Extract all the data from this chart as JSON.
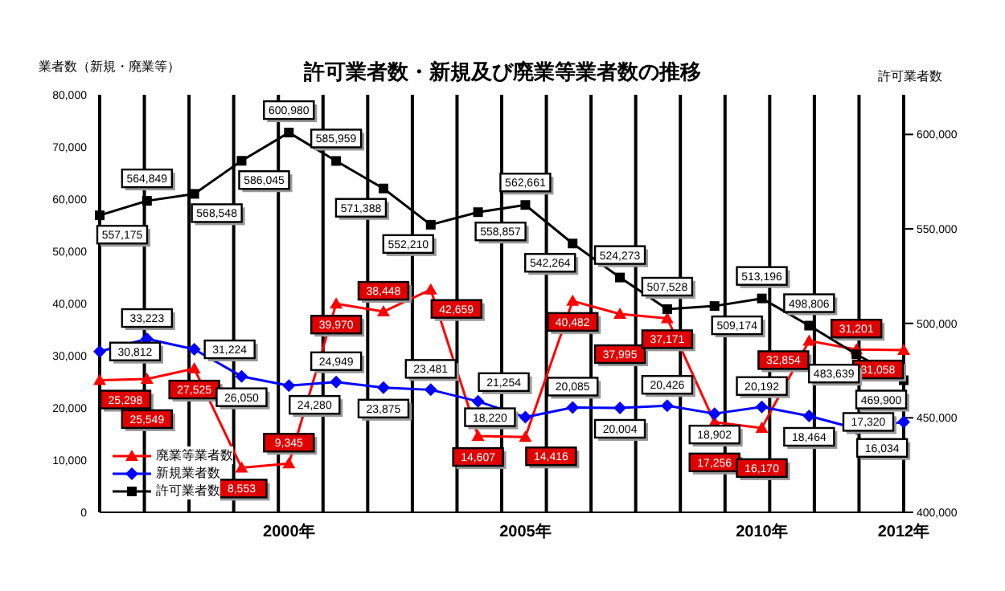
{
  "chart_data": {
    "type": "line",
    "title": "許可業者数・新規及び廃業等業者数の推移",
    "ylabel": "業者数（新規・廃業等）",
    "y2label": "許可業者数",
    "categories": [
      null,
      null,
      null,
      null,
      "2000年",
      null,
      null,
      null,
      null,
      "2005年",
      null,
      null,
      null,
      null,
      "2010年",
      null,
      null,
      "2012年"
    ],
    "series": [
      {
        "name": "廃業等業者数",
        "color": "#ff0000",
        "marker": "triangle",
        "values": [
          25298,
          25549,
          27525,
          8553,
          9345,
          39970,
          38448,
          42659,
          14607,
          14416,
          40482,
          37995,
          37171,
          17256,
          16170,
          32854,
          31201,
          31058
        ],
        "value_labels": [
          "25,298",
          "25,549",
          "27,525",
          "8,553",
          "9,345",
          "39,970",
          "38,448",
          "42,659",
          "14,607",
          "14,416",
          "40,482",
          "37,995",
          "37,171",
          "17,256",
          "16,170",
          "32,854",
          "31,201",
          "31,058"
        ]
      },
      {
        "name": "新規業者数",
        "color": "#0000ff",
        "marker": "diamond",
        "values": [
          30812,
          33223,
          31224,
          26050,
          24280,
          24949,
          23875,
          23481,
          21254,
          18220,
          20085,
          20004,
          20426,
          18902,
          20192,
          18464,
          16034,
          17320
        ],
        "value_labels": [
          "30,812",
          "33,223",
          "31,224",
          "26,050",
          "24,280",
          "24,949",
          "23,875",
          "23,481",
          "21,254",
          "18,220",
          "20,085",
          "20,004",
          "20,426",
          "18,902",
          "20,192",
          "18,464",
          "16,034",
          "17,320"
        ]
      },
      {
        "name": "許可業者数",
        "color": "#000000",
        "marker": "square",
        "axis": "y2",
        "values": [
          557175,
          564849,
          568548,
          586045,
          600980,
          585959,
          571388,
          552210,
          558857,
          562661,
          542264,
          524273,
          507528,
          509174,
          513196,
          498806,
          483639,
          469900
        ],
        "value_labels": [
          "557,175",
          "564,849",
          "568,548",
          "586,045",
          "600,980",
          "585,959",
          "571,388",
          "552,210",
          "558,857",
          "562,661",
          "542,264",
          "524,273",
          "507,528",
          "509,174",
          "513,196",
          "498,806",
          "483,639",
          "469,900"
        ]
      }
    ],
    "ylim": [
      0,
      80000
    ],
    "yticks": [
      0,
      {
        "value": 10000,
        "label": "10,000"
      },
      {
        "value": 20000,
        "label": "20,000"
      },
      {
        "value": 30000,
        "label": "30,000"
      },
      {
        "value": 40000,
        "label": "40,000"
      },
      {
        "value": 50000,
        "label": "50,000"
      },
      {
        "value": 60000,
        "label": "60,000"
      },
      {
        "value": 70000,
        "label": "70,000"
      },
      {
        "value": 80000,
        "label": "80,000"
      }
    ],
    "y2lim": [
      400000,
      621000
    ],
    "y2ticks": [
      {
        "value": 400000,
        "label": "400,000"
      },
      {
        "value": 450000,
        "label": "450,000"
      },
      {
        "value": 500000,
        "label": "500,000"
      },
      {
        "value": 550000,
        "label": "550,000"
      },
      {
        "value": 600000,
        "label": "600,000"
      }
    ],
    "grid": "x",
    "legend": "bottom left"
  }
}
